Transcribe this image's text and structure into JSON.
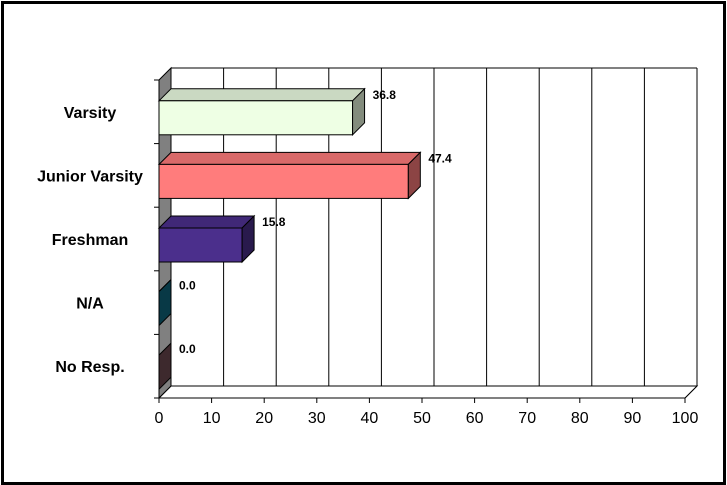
{
  "chart_data": {
    "type": "bar",
    "orientation": "horizontal",
    "three_d": true,
    "categories": [
      "Varsity",
      "Junior Varsity",
      "Freshman",
      "N/A",
      "No Resp."
    ],
    "values": [
      36.8,
      47.4,
      15.8,
      0.0,
      0.0
    ],
    "value_labels": [
      "36.8",
      "47.4",
      "15.8",
      "0.0",
      "0.0"
    ],
    "x_ticks": [
      "0",
      "10",
      "20",
      "30",
      "40",
      "50",
      "60",
      "70",
      "80",
      "90",
      "100"
    ],
    "xlim": [
      0,
      100
    ],
    "grid": true,
    "legend": "none",
    "colors": [
      "#eeffe4",
      "#ff7c7c",
      "#4b2f8c",
      "#0f6880",
      "#6e4a52"
    ]
  }
}
